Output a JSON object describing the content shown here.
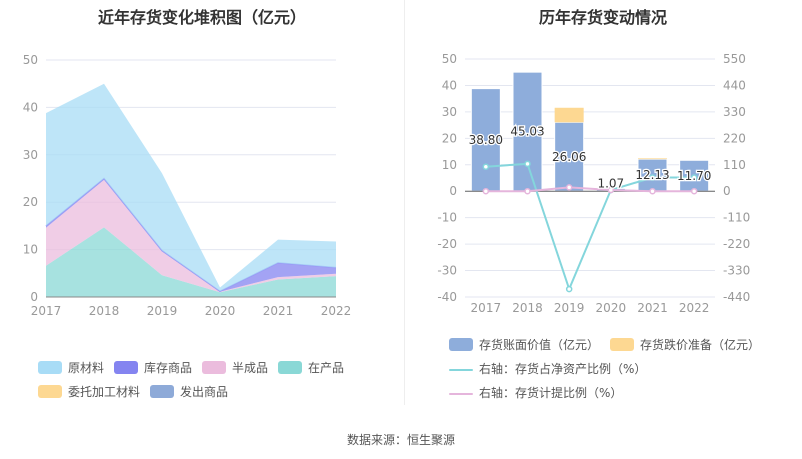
{
  "chart_data": [
    {
      "type": "area",
      "stacked": true,
      "title": "近年存货变化堆积图（亿元）",
      "categories": [
        "2017",
        "2018",
        "2019",
        "2020",
        "2021",
        "2022"
      ],
      "ylim": [
        0,
        50
      ],
      "yticks": [
        0,
        10,
        20,
        30,
        40,
        50
      ],
      "series": [
        {
          "name": "在产品",
          "color": "#8ad8d6",
          "values": [
            6.6,
            14.7,
            4.6,
            1.0,
            3.7,
            4.4
          ]
        },
        {
          "name": "半成品",
          "color": "#ebbcdd",
          "values": [
            8.0,
            10.0,
            5.0,
            0.1,
            0.5,
            0.5
          ]
        },
        {
          "name": "库存商品",
          "color": "#8484f0",
          "values": [
            0.4,
            0.3,
            0.2,
            0.1,
            3.0,
            1.3
          ]
        },
        {
          "name": "原材料",
          "color": "#a8dcf6",
          "values": [
            23.8,
            20.0,
            16.3,
            0.8,
            4.9,
            5.5
          ]
        },
        {
          "name": "委托加工材料",
          "color": "#fdd892",
          "values": [
            0,
            0,
            0,
            0,
            0,
            0
          ]
        },
        {
          "name": "发出商品",
          "color": "#8eaad8",
          "values": [
            0,
            0,
            0,
            0,
            0,
            0
          ]
        }
      ]
    },
    {
      "type": "bar",
      "title": "历年存货变动情况",
      "categories": [
        "2017",
        "2018",
        "2019",
        "2020",
        "2021",
        "2022"
      ],
      "ylim": [
        -40,
        50
      ],
      "yticks": [
        -40,
        -30,
        -20,
        -10,
        0,
        10,
        20,
        30,
        40,
        50
      ],
      "y2lim": [
        -440,
        550
      ],
      "y2ticks": [
        -440,
        -330,
        -220,
        -110,
        0,
        110,
        220,
        330,
        440,
        550
      ],
      "bars": [
        {
          "name": "存货账面价值（亿元）",
          "color": "#8eaddb",
          "values": [
            38.8,
            45.03,
            26.06,
            1.07,
            12.13,
            11.7
          ],
          "labels": [
            "38.80",
            "45.03",
            "26.06",
            "1.07",
            "12.13",
            "11.70"
          ]
        },
        {
          "name": "存货跌价准备（亿元）",
          "color": "#fdd892",
          "values": [
            0,
            0,
            5.5,
            0,
            0.3,
            0
          ]
        }
      ],
      "lines": [
        {
          "name": "右轴：存货占净资产比例（%）",
          "color": "#84d6dc",
          "values": [
            102,
            114,
            -407,
            5,
            57,
            57
          ]
        },
        {
          "name": "右轴：存货计提比例（%）",
          "color": "#e5b5dc",
          "values": [
            0,
            0,
            16,
            5,
            0,
            0
          ]
        }
      ]
    }
  ],
  "source": "数据来源：恒生聚源"
}
